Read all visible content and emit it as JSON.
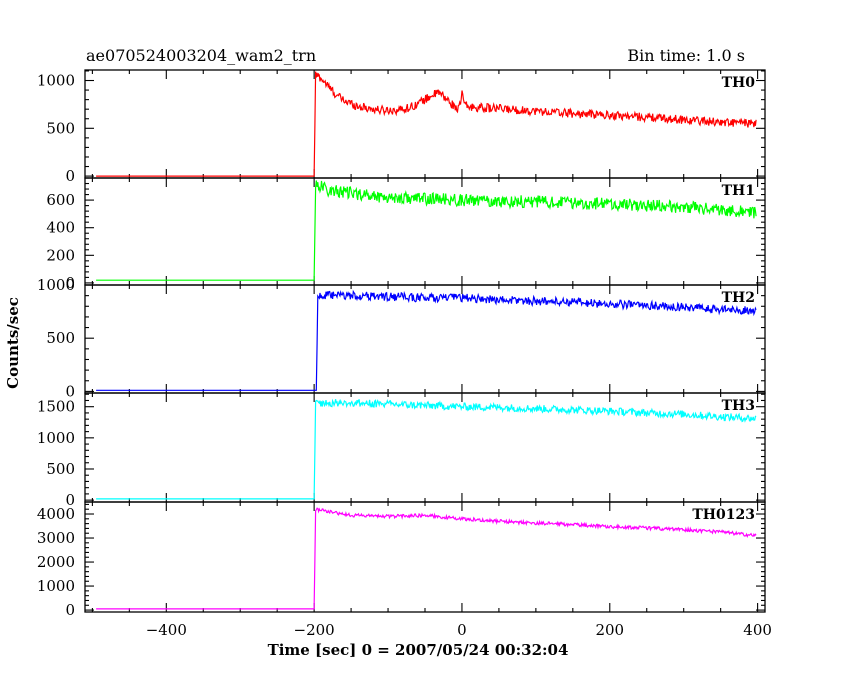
{
  "header": {
    "title": "ae070524003204_wam2_trn",
    "bin_time": "Bin time: 1.0 s"
  },
  "axes": {
    "xlabel": "Time [sec] 0 = 2007/05/24 00:32:04",
    "ylabel": "Counts/sec",
    "xlim": [
      -510,
      410
    ],
    "x_ticks": [
      -400,
      -200,
      0,
      200,
      400
    ],
    "x_tick_labels": [
      "−400",
      "−200",
      "0",
      "200",
      "400"
    ]
  },
  "chart_data": [
    {
      "type": "line",
      "series_label": "TH0",
      "color": "#ff0000",
      "ylim": [
        -20,
        1110
      ],
      "y_ticks": [
        0,
        500,
        1000
      ],
      "y_tick_labels": [
        "0",
        "500",
        "1000"
      ],
      "points": [
        [
          -495,
          0
        ],
        [
          -200,
          0
        ],
        [
          -198,
          1060
        ],
        [
          -190,
          1020
        ],
        [
          -180,
          930
        ],
        [
          -170,
          850
        ],
        [
          -160,
          790
        ],
        [
          -150,
          760
        ],
        [
          -140,
          730
        ],
        [
          -130,
          715
        ],
        [
          -120,
          700
        ],
        [
          -110,
          690
        ],
        [
          -100,
          690
        ],
        [
          -90,
          690
        ],
        [
          -80,
          700
        ],
        [
          -70,
          720
        ],
        [
          -60,
          760
        ],
        [
          -50,
          800
        ],
        [
          -40,
          850
        ],
        [
          -30,
          870
        ],
        [
          -25,
          830
        ],
        [
          -20,
          800
        ],
        [
          -15,
          760
        ],
        [
          -10,
          730
        ],
        [
          -5,
          700
        ],
        [
          -2,
          740
        ],
        [
          0,
          900
        ],
        [
          2,
          780
        ],
        [
          5,
          740
        ],
        [
          10,
          720
        ],
        [
          20,
          720
        ],
        [
          40,
          710
        ],
        [
          60,
          700
        ],
        [
          80,
          690
        ],
        [
          100,
          680
        ],
        [
          120,
          670
        ],
        [
          140,
          660
        ],
        [
          160,
          650
        ],
        [
          180,
          645
        ],
        [
          200,
          635
        ],
        [
          220,
          630
        ],
        [
          240,
          620
        ],
        [
          260,
          610
        ],
        [
          280,
          600
        ],
        [
          300,
          590
        ],
        [
          320,
          580
        ],
        [
          340,
          570
        ],
        [
          360,
          560
        ],
        [
          380,
          555
        ],
        [
          398,
          545
        ]
      ],
      "noise": 45
    },
    {
      "type": "line",
      "series_label": "TH1",
      "color": "#00ff00",
      "ylim": [
        -15,
        760
      ],
      "y_ticks": [
        0,
        200,
        400,
        600
      ],
      "y_tick_labels": [
        "0",
        "200",
        "400",
        "600"
      ],
      "points": [
        [
          -495,
          20
        ],
        [
          -200,
          20
        ],
        [
          -198,
          720
        ],
        [
          -180,
          670
        ],
        [
          -150,
          650
        ],
        [
          -100,
          620
        ],
        [
          -50,
          610
        ],
        [
          0,
          600
        ],
        [
          50,
          590
        ],
        [
          100,
          590
        ],
        [
          150,
          580
        ],
        [
          200,
          570
        ],
        [
          250,
          560
        ],
        [
          300,
          550
        ],
        [
          350,
          530
        ],
        [
          398,
          510
        ]
      ],
      "noise": 45
    },
    {
      "type": "line",
      "series_label": "TH2",
      "color": "#0000ff",
      "ylim": [
        -15,
        1000
      ],
      "y_ticks": [
        0,
        500,
        1000
      ],
      "y_tick_labels": [
        "0",
        "500",
        "1000"
      ],
      "points": [
        [
          -495,
          10
        ],
        [
          -197,
          10
        ],
        [
          -195,
          900
        ],
        [
          -150,
          900
        ],
        [
          -100,
          890
        ],
        [
          -50,
          880
        ],
        [
          0,
          880
        ],
        [
          50,
          860
        ],
        [
          100,
          850
        ],
        [
          150,
          840
        ],
        [
          200,
          820
        ],
        [
          250,
          810
        ],
        [
          300,
          790
        ],
        [
          350,
          770
        ],
        [
          398,
          760
        ]
      ],
      "noise": 40
    },
    {
      "type": "line",
      "series_label": "TH3",
      "color": "#00ffff",
      "ylim": [
        -30,
        1720
      ],
      "y_ticks": [
        0,
        500,
        1000,
        1500
      ],
      "y_tick_labels": [
        "0",
        "500",
        "1000",
        "1500"
      ],
      "points": [
        [
          -495,
          20
        ],
        [
          -200,
          20
        ],
        [
          -198,
          1560
        ],
        [
          -150,
          1560
        ],
        [
          -100,
          1540
        ],
        [
          -50,
          1520
        ],
        [
          0,
          1500
        ],
        [
          50,
          1490
        ],
        [
          100,
          1470
        ],
        [
          150,
          1450
        ],
        [
          200,
          1430
        ],
        [
          250,
          1400
        ],
        [
          300,
          1380
        ],
        [
          350,
          1340
        ],
        [
          398,
          1310
        ]
      ],
      "noise": 60
    },
    {
      "type": "line",
      "series_label": "TH0123",
      "color": "#ff00ff",
      "ylim": [
        -80,
        4500
      ],
      "y_ticks": [
        0,
        1000,
        2000,
        3000,
        4000
      ],
      "y_tick_labels": [
        "0",
        "1000",
        "2000",
        "3000",
        "4000"
      ],
      "points": [
        [
          -495,
          50
        ],
        [
          -200,
          50
        ],
        [
          -198,
          4200
        ],
        [
          -180,
          4100
        ],
        [
          -150,
          3950
        ],
        [
          -100,
          3900
        ],
        [
          -50,
          3950
        ],
        [
          -20,
          3850
        ],
        [
          0,
          3800
        ],
        [
          50,
          3700
        ],
        [
          100,
          3620
        ],
        [
          150,
          3560
        ],
        [
          200,
          3480
        ],
        [
          250,
          3420
        ],
        [
          300,
          3350
        ],
        [
          350,
          3250
        ],
        [
          398,
          3100
        ]
      ],
      "noise": 70
    }
  ]
}
